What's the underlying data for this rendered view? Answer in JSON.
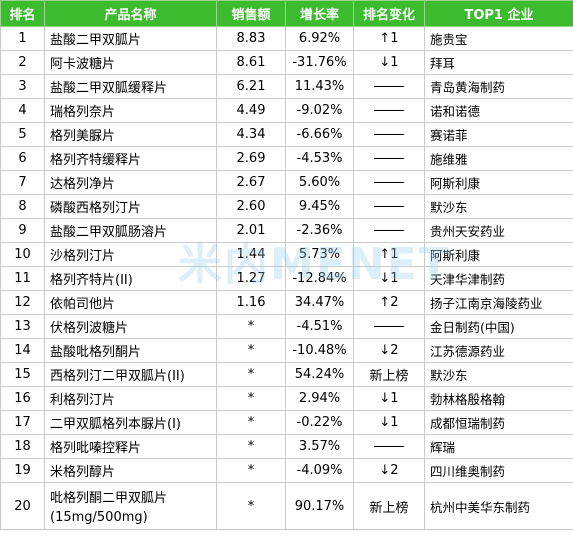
{
  "headers": [
    "排名",
    "产品名称",
    "销售额",
    "增长率",
    "排名变化",
    "TOP1 企业"
  ],
  "watermark": "米内MENET",
  "rows": [
    {
      "rank": "1",
      "name": "盐酸二甲双胍片",
      "sales": "8.83",
      "growth": "6.92%",
      "change": "↑1",
      "company": "施贵宝"
    },
    {
      "rank": "2",
      "name": "阿卡波糖片",
      "sales": "8.61",
      "growth": "-31.76%",
      "change": "↓1",
      "company": "拜耳"
    },
    {
      "rank": "3",
      "name": "盐酸二甲双胍缓释片",
      "sales": "6.21",
      "growth": "11.43%",
      "change": "——",
      "company": "青岛黄海制药"
    },
    {
      "rank": "4",
      "name": "瑞格列奈片",
      "sales": "4.49",
      "growth": "-9.02%",
      "change": "——",
      "company": "诺和诺德"
    },
    {
      "rank": "5",
      "name": "格列美脲片",
      "sales": "4.34",
      "growth": "-6.66%",
      "change": "——",
      "company": "赛诺菲"
    },
    {
      "rank": "6",
      "name": "格列齐特缓释片",
      "sales": "2.69",
      "growth": "-4.53%",
      "change": "——",
      "company": "施维雅"
    },
    {
      "rank": "7",
      "name": "达格列净片",
      "sales": "2.67",
      "growth": "5.60%",
      "change": "——",
      "company": "阿斯利康"
    },
    {
      "rank": "8",
      "name": "磷酸西格列汀片",
      "sales": "2.60",
      "growth": "9.45%",
      "change": "——",
      "company": "默沙东"
    },
    {
      "rank": "9",
      "name": "盐酸二甲双胍肠溶片",
      "sales": "2.01",
      "growth": "-2.36%",
      "change": "——",
      "company": "贵州天安药业"
    },
    {
      "rank": "10",
      "name": "沙格列汀片",
      "sales": "1.44",
      "growth": "5.73%",
      "change": "↑1",
      "company": "阿斯利康"
    },
    {
      "rank": "11",
      "name": "格列齐特片(II)",
      "sales": "1.27",
      "growth": "-12.84%",
      "change": "↓1",
      "company": "天津华津制药"
    },
    {
      "rank": "12",
      "name": "依帕司他片",
      "sales": "1.16",
      "growth": "34.47%",
      "change": "↑2",
      "company": "扬子江南京海陵药业"
    },
    {
      "rank": "13",
      "name": "伏格列波糖片",
      "sales": "*",
      "growth": "-4.51%",
      "change": "——",
      "company": "金日制药(中国)"
    },
    {
      "rank": "14",
      "name": "盐酸吡格列酮片",
      "sales": "*",
      "growth": "-10.48%",
      "change": "↓2",
      "company": "江苏德源药业"
    },
    {
      "rank": "15",
      "name": "西格列汀二甲双胍片(II)",
      "sales": "*",
      "growth": "54.24%",
      "change": "新上榜",
      "company": "默沙东"
    },
    {
      "rank": "16",
      "name": "利格列汀片",
      "sales": "*",
      "growth": "2.94%",
      "change": "↓1",
      "company": "勃林格殷格翰"
    },
    {
      "rank": "17",
      "name": "二甲双胍格列本脲片(I)",
      "sales": "*",
      "growth": "-0.22%",
      "change": "↓1",
      "company": "成都恒瑞制药"
    },
    {
      "rank": "18",
      "name": "格列吡嗪控释片",
      "sales": "*",
      "growth": "3.57%",
      "change": "——",
      "company": "辉瑞"
    },
    {
      "rank": "19",
      "name": "米格列醇片",
      "sales": "*",
      "growth": "-4.09%",
      "change": "↓2",
      "company": "四川维奥制药"
    },
    {
      "rank": "20",
      "name": "吡格列酮二甲双胍片",
      "name2": "(15mg/500mg)",
      "sales": "*",
      "growth": "90.17%",
      "change": "新上榜",
      "company": "杭州中美华东制药"
    }
  ]
}
